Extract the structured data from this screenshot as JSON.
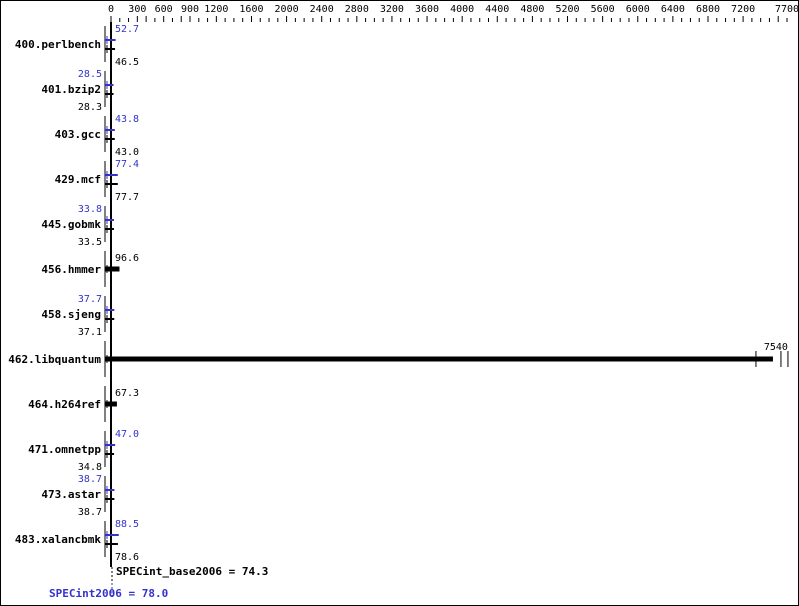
{
  "chart_data": {
    "type": "bar",
    "orientation": "horizontal",
    "title": "",
    "xlabel": "",
    "ylabel": "",
    "xlim": [
      0,
      7700
    ],
    "x_ticks": [
      0,
      300,
      600,
      900,
      1200,
      1600,
      2000,
      2400,
      2800,
      3200,
      3600,
      4000,
      4400,
      4800,
      5200,
      5600,
      6000,
      6400,
      6800,
      7200,
      7700
    ],
    "grid": false,
    "categories": [
      "400.perlbench",
      "401.bzip2",
      "403.gcc",
      "429.mcf",
      "445.gobmk",
      "456.hmmer",
      "458.sjeng",
      "462.libquantum",
      "464.h264ref",
      "471.omnetpp",
      "473.astar",
      "483.xalancbmk"
    ],
    "series": [
      {
        "key": "base",
        "color": "#000000",
        "values": [
          46.5,
          28.3,
          43.0,
          77.7,
          33.5,
          96.6,
          37.1,
          7540,
          67.3,
          34.8,
          38.7,
          78.6
        ]
      },
      {
        "key": "peak",
        "color": "#3333cc",
        "values": [
          52.7,
          28.5,
          43.8,
          77.4,
          33.8,
          null,
          37.7,
          null,
          null,
          47.0,
          38.7,
          88.5
        ]
      }
    ],
    "summary": {
      "base_label": "SPECint_base2006 = 74.3",
      "base_value": 74.3,
      "peak_label": "SPECint2006 = 78.0",
      "peak_value": 78.0
    }
  }
}
